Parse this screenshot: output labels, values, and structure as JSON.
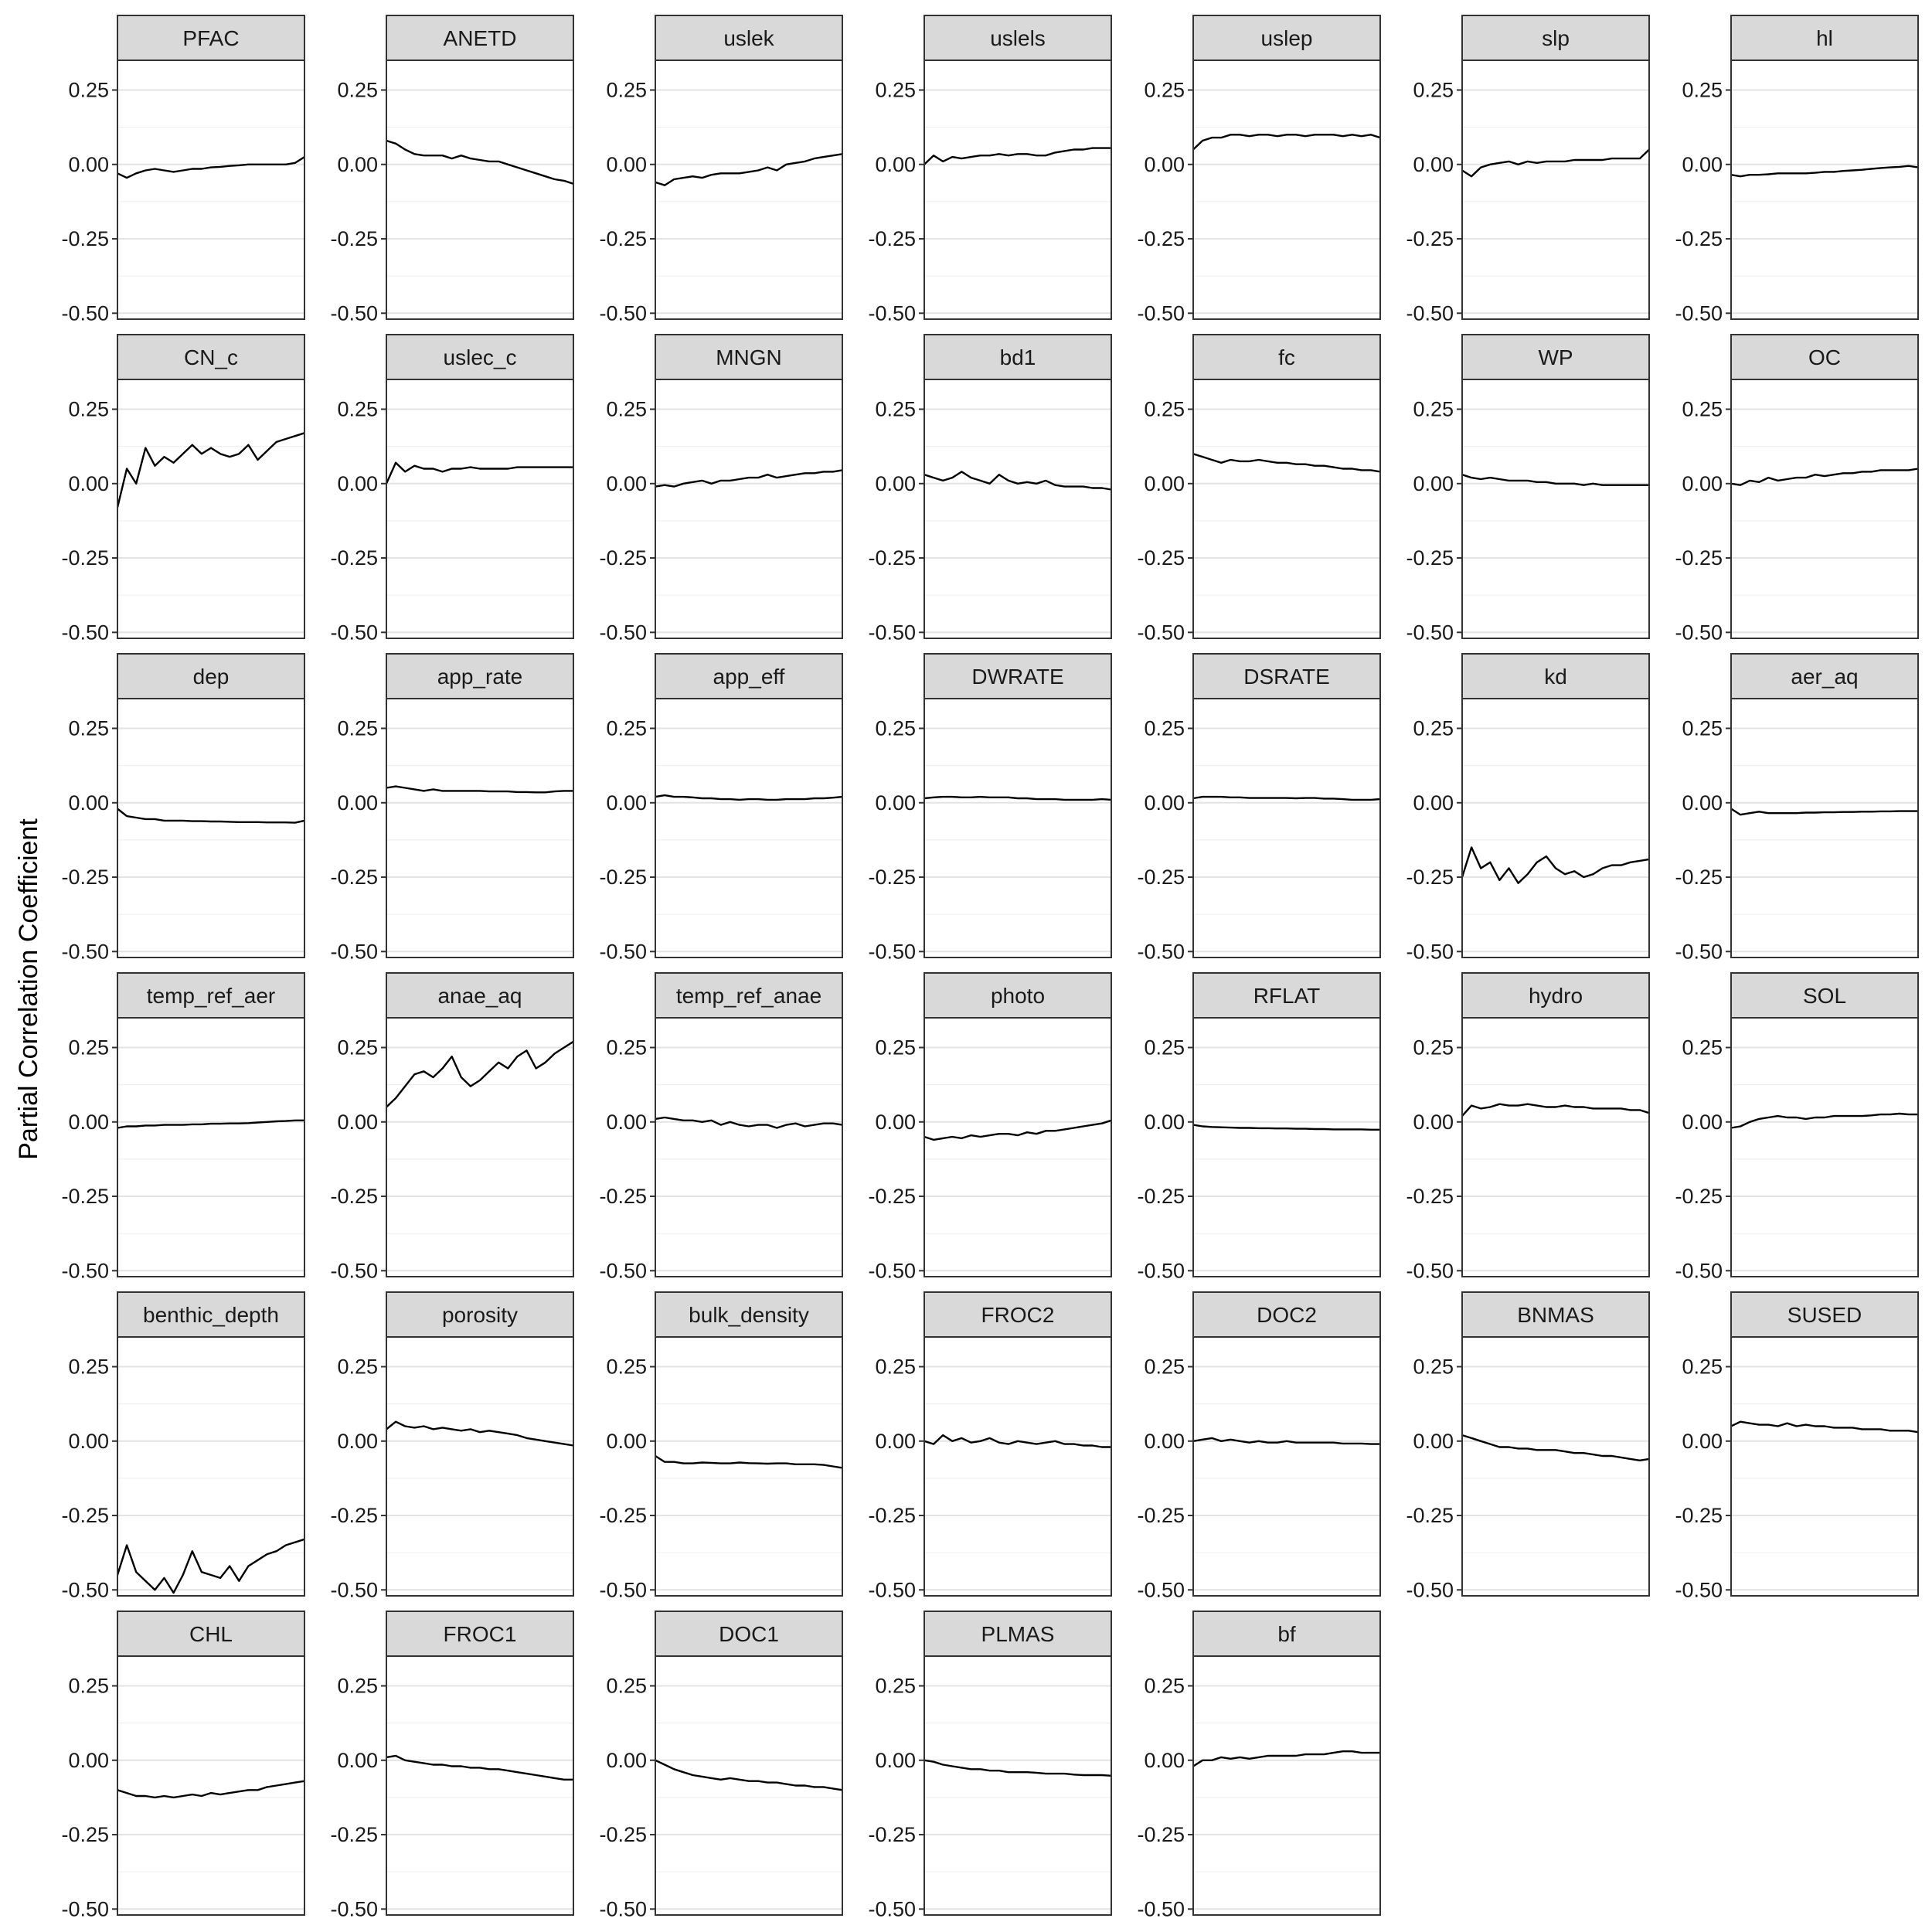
{
  "chart_data": {
    "type": "line",
    "layout": "facet-grid",
    "ylabel": "Partial Correlation Coefficient",
    "xlabel": "",
    "ylim": [
      -0.52,
      0.35
    ],
    "yticks": [
      0.25,
      0.0,
      -0.25,
      -0.5
    ],
    "ytick_labels": [
      "0.25",
      "0.00",
      "-0.25",
      "-0.50"
    ],
    "x": [
      0,
      0.05,
      0.1,
      0.15,
      0.2,
      0.25,
      0.3,
      0.35,
      0.4,
      0.45,
      0.5,
      0.55,
      0.6,
      0.65,
      0.7,
      0.75,
      0.8,
      0.85,
      0.9,
      0.95,
      1.0
    ],
    "grid": true,
    "series": [
      {
        "name": "PFAC",
        "values": [
          -0.03,
          -0.045,
          -0.03,
          -0.02,
          -0.015,
          -0.02,
          -0.025,
          -0.02,
          -0.015,
          -0.015,
          -0.01,
          -0.008,
          -0.005,
          -0.003,
          0.0,
          0.0,
          0.0,
          0.0,
          0.0,
          0.005,
          0.025
        ]
      },
      {
        "name": "ANETD",
        "values": [
          0.08,
          0.07,
          0.05,
          0.035,
          0.03,
          0.03,
          0.03,
          0.02,
          0.03,
          0.02,
          0.015,
          0.01,
          0.01,
          0.0,
          -0.01,
          -0.02,
          -0.03,
          -0.04,
          -0.05,
          -0.055,
          -0.065
        ]
      },
      {
        "name": "uslek",
        "values": [
          -0.06,
          -0.07,
          -0.05,
          -0.045,
          -0.04,
          -0.045,
          -0.035,
          -0.03,
          -0.03,
          -0.03,
          -0.025,
          -0.02,
          -0.01,
          -0.02,
          0.0,
          0.005,
          0.01,
          0.02,
          0.025,
          0.03,
          0.035
        ]
      },
      {
        "name": "uslels",
        "values": [
          0.0,
          0.03,
          0.01,
          0.025,
          0.02,
          0.025,
          0.03,
          0.03,
          0.035,
          0.03,
          0.035,
          0.035,
          0.03,
          0.03,
          0.04,
          0.045,
          0.05,
          0.05,
          0.055,
          0.055,
          0.055
        ]
      },
      {
        "name": "uslep",
        "values": [
          0.05,
          0.08,
          0.09,
          0.09,
          0.1,
          0.1,
          0.095,
          0.1,
          0.1,
          0.095,
          0.1,
          0.1,
          0.095,
          0.1,
          0.1,
          0.1,
          0.095,
          0.1,
          0.095,
          0.1,
          0.09
        ]
      },
      {
        "name": "slp",
        "values": [
          -0.02,
          -0.04,
          -0.01,
          0.0,
          0.005,
          0.01,
          0.0,
          0.01,
          0.005,
          0.01,
          0.01,
          0.01,
          0.015,
          0.015,
          0.015,
          0.015,
          0.02,
          0.02,
          0.02,
          0.02,
          0.05
        ]
      },
      {
        "name": "hl",
        "values": [
          -0.035,
          -0.04,
          -0.035,
          -0.035,
          -0.033,
          -0.03,
          -0.03,
          -0.03,
          -0.03,
          -0.028,
          -0.025,
          -0.025,
          -0.022,
          -0.02,
          -0.018,
          -0.015,
          -0.012,
          -0.01,
          -0.008,
          -0.005,
          -0.01
        ]
      },
      {
        "name": "CN_c",
        "values": [
          -0.08,
          0.05,
          0.0,
          0.12,
          0.06,
          0.09,
          0.07,
          0.1,
          0.13,
          0.1,
          0.12,
          0.1,
          0.09,
          0.1,
          0.13,
          0.08,
          0.11,
          0.14,
          0.15,
          0.16,
          0.17
        ]
      },
      {
        "name": "uslec_c",
        "values": [
          0.0,
          0.07,
          0.04,
          0.06,
          0.05,
          0.05,
          0.04,
          0.05,
          0.05,
          0.055,
          0.05,
          0.05,
          0.05,
          0.05,
          0.055,
          0.055,
          0.055,
          0.055,
          0.055,
          0.055,
          0.055
        ]
      },
      {
        "name": "MNGN",
        "values": [
          -0.01,
          -0.005,
          -0.01,
          0.0,
          0.005,
          0.01,
          0.0,
          0.01,
          0.01,
          0.015,
          0.02,
          0.02,
          0.03,
          0.02,
          0.025,
          0.03,
          0.035,
          0.035,
          0.04,
          0.04,
          0.045
        ]
      },
      {
        "name": "bd1",
        "values": [
          0.03,
          0.02,
          0.01,
          0.02,
          0.04,
          0.02,
          0.01,
          0.0,
          0.03,
          0.01,
          0.0,
          0.005,
          0.0,
          0.01,
          -0.005,
          -0.01,
          -0.01,
          -0.01,
          -0.015,
          -0.015,
          -0.02
        ]
      },
      {
        "name": "fc",
        "values": [
          0.1,
          0.09,
          0.08,
          0.07,
          0.08,
          0.075,
          0.075,
          0.08,
          0.075,
          0.07,
          0.07,
          0.065,
          0.065,
          0.06,
          0.06,
          0.055,
          0.05,
          0.05,
          0.045,
          0.045,
          0.04
        ]
      },
      {
        "name": "WP",
        "values": [
          0.03,
          0.02,
          0.015,
          0.02,
          0.015,
          0.01,
          0.01,
          0.01,
          0.005,
          0.005,
          0.0,
          0.0,
          0.0,
          -0.005,
          0.0,
          -0.005,
          -0.005,
          -0.005,
          -0.005,
          -0.005,
          -0.005
        ]
      },
      {
        "name": "OC",
        "values": [
          0.0,
          -0.005,
          0.01,
          0.005,
          0.02,
          0.01,
          0.015,
          0.02,
          0.02,
          0.03,
          0.025,
          0.03,
          0.035,
          0.035,
          0.04,
          0.04,
          0.045,
          0.045,
          0.045,
          0.045,
          0.05
        ]
      },
      {
        "name": "dep",
        "values": [
          -0.02,
          -0.045,
          -0.05,
          -0.055,
          -0.055,
          -0.06,
          -0.06,
          -0.06,
          -0.062,
          -0.062,
          -0.063,
          -0.063,
          -0.064,
          -0.065,
          -0.065,
          -0.065,
          -0.066,
          -0.066,
          -0.066,
          -0.067,
          -0.06
        ]
      },
      {
        "name": "app_rate",
        "values": [
          0.05,
          0.055,
          0.05,
          0.045,
          0.04,
          0.045,
          0.04,
          0.04,
          0.04,
          0.04,
          0.04,
          0.038,
          0.038,
          0.038,
          0.036,
          0.036,
          0.035,
          0.035,
          0.038,
          0.04,
          0.04
        ]
      },
      {
        "name": "app_eff",
        "values": [
          0.02,
          0.025,
          0.02,
          0.02,
          0.018,
          0.015,
          0.015,
          0.012,
          0.012,
          0.01,
          0.012,
          0.012,
          0.01,
          0.01,
          0.012,
          0.012,
          0.012,
          0.015,
          0.015,
          0.017,
          0.02
        ]
      },
      {
        "name": "DWRATE",
        "values": [
          0.015,
          0.018,
          0.02,
          0.02,
          0.018,
          0.018,
          0.02,
          0.018,
          0.018,
          0.018,
          0.015,
          0.015,
          0.012,
          0.012,
          0.012,
          0.01,
          0.01,
          0.01,
          0.01,
          0.012,
          0.01
        ]
      },
      {
        "name": "DSRATE",
        "values": [
          0.015,
          0.02,
          0.02,
          0.02,
          0.018,
          0.018,
          0.016,
          0.016,
          0.016,
          0.016,
          0.016,
          0.015,
          0.016,
          0.016,
          0.014,
          0.014,
          0.012,
          0.01,
          0.01,
          0.01,
          0.012
        ]
      },
      {
        "name": "kd",
        "values": [
          -0.25,
          -0.15,
          -0.22,
          -0.2,
          -0.26,
          -0.22,
          -0.27,
          -0.24,
          -0.2,
          -0.18,
          -0.22,
          -0.24,
          -0.23,
          -0.25,
          -0.24,
          -0.22,
          -0.21,
          -0.21,
          -0.2,
          -0.195,
          -0.19
        ]
      },
      {
        "name": "aer_aq",
        "values": [
          -0.02,
          -0.04,
          -0.035,
          -0.03,
          -0.035,
          -0.035,
          -0.035,
          -0.035,
          -0.033,
          -0.033,
          -0.032,
          -0.032,
          -0.031,
          -0.031,
          -0.03,
          -0.03,
          -0.029,
          -0.029,
          -0.028,
          -0.028,
          -0.028
        ]
      },
      {
        "name": "temp_ref_aer",
        "values": [
          -0.02,
          -0.015,
          -0.015,
          -0.012,
          -0.012,
          -0.01,
          -0.01,
          -0.01,
          -0.008,
          -0.008,
          -0.006,
          -0.006,
          -0.005,
          -0.005,
          -0.004,
          -0.002,
          0.0,
          0.002,
          0.003,
          0.005,
          0.005
        ]
      },
      {
        "name": "anae_aq",
        "values": [
          0.05,
          0.08,
          0.12,
          0.16,
          0.17,
          0.15,
          0.18,
          0.22,
          0.15,
          0.12,
          0.14,
          0.17,
          0.2,
          0.18,
          0.22,
          0.24,
          0.18,
          0.2,
          0.23,
          0.25,
          0.27
        ]
      },
      {
        "name": "temp_ref_anae",
        "values": [
          0.01,
          0.015,
          0.01,
          0.005,
          0.005,
          0.0,
          0.005,
          -0.01,
          0.0,
          -0.01,
          -0.015,
          -0.01,
          -0.01,
          -0.02,
          -0.01,
          -0.005,
          -0.015,
          -0.01,
          -0.005,
          -0.005,
          -0.01
        ]
      },
      {
        "name": "photo",
        "values": [
          -0.05,
          -0.06,
          -0.055,
          -0.05,
          -0.055,
          -0.045,
          -0.05,
          -0.045,
          -0.04,
          -0.04,
          -0.045,
          -0.035,
          -0.04,
          -0.03,
          -0.03,
          -0.025,
          -0.02,
          -0.015,
          -0.01,
          -0.005,
          0.005
        ]
      },
      {
        "name": "RFLAT",
        "values": [
          -0.01,
          -0.015,
          -0.017,
          -0.018,
          -0.019,
          -0.02,
          -0.02,
          -0.021,
          -0.021,
          -0.022,
          -0.022,
          -0.023,
          -0.023,
          -0.024,
          -0.024,
          -0.025,
          -0.025,
          -0.025,
          -0.025,
          -0.026,
          -0.026
        ]
      },
      {
        "name": "hydro",
        "values": [
          0.02,
          0.055,
          0.045,
          0.05,
          0.06,
          0.055,
          0.055,
          0.06,
          0.055,
          0.05,
          0.05,
          0.055,
          0.05,
          0.05,
          0.045,
          0.045,
          0.045,
          0.045,
          0.04,
          0.04,
          0.03
        ]
      },
      {
        "name": "SOL",
        "values": [
          -0.02,
          -0.015,
          0.0,
          0.01,
          0.015,
          0.02,
          0.015,
          0.015,
          0.01,
          0.015,
          0.015,
          0.02,
          0.02,
          0.02,
          0.02,
          0.022,
          0.025,
          0.025,
          0.028,
          0.025,
          0.025
        ]
      },
      {
        "name": "benthic_depth",
        "values": [
          -0.45,
          -0.35,
          -0.44,
          -0.47,
          -0.5,
          -0.46,
          -0.51,
          -0.45,
          -0.37,
          -0.44,
          -0.45,
          -0.46,
          -0.42,
          -0.47,
          -0.42,
          -0.4,
          -0.38,
          -0.37,
          -0.35,
          -0.34,
          -0.33
        ]
      },
      {
        "name": "porosity",
        "values": [
          0.04,
          0.065,
          0.05,
          0.045,
          0.05,
          0.04,
          0.045,
          0.04,
          0.035,
          0.04,
          0.03,
          0.035,
          0.03,
          0.025,
          0.02,
          0.01,
          0.005,
          0.0,
          -0.005,
          -0.01,
          -0.015
        ]
      },
      {
        "name": "bulk_density",
        "values": [
          -0.05,
          -0.07,
          -0.07,
          -0.075,
          -0.075,
          -0.072,
          -0.073,
          -0.075,
          -0.075,
          -0.072,
          -0.074,
          -0.075,
          -0.076,
          -0.075,
          -0.075,
          -0.078,
          -0.078,
          -0.078,
          -0.08,
          -0.085,
          -0.09
        ]
      },
      {
        "name": "FROC2",
        "values": [
          0.0,
          -0.01,
          0.02,
          0.0,
          0.01,
          -0.005,
          0.0,
          0.01,
          -0.005,
          -0.01,
          0.0,
          -0.005,
          -0.01,
          -0.005,
          0.0,
          -0.01,
          -0.01,
          -0.015,
          -0.015,
          -0.02,
          -0.02
        ]
      },
      {
        "name": "DOC2",
        "values": [
          0.0,
          0.005,
          0.01,
          0.0,
          0.005,
          0.0,
          -0.005,
          0.0,
          -0.005,
          -0.005,
          0.0,
          -0.005,
          -0.005,
          -0.005,
          -0.005,
          -0.005,
          -0.008,
          -0.008,
          -0.008,
          -0.01,
          -0.01
        ]
      },
      {
        "name": "BNMAS",
        "values": [
          0.02,
          0.01,
          0.0,
          -0.01,
          -0.02,
          -0.02,
          -0.025,
          -0.025,
          -0.03,
          -0.03,
          -0.03,
          -0.035,
          -0.04,
          -0.04,
          -0.045,
          -0.05,
          -0.05,
          -0.055,
          -0.06,
          -0.065,
          -0.06
        ]
      },
      {
        "name": "SUSED",
        "values": [
          0.05,
          0.065,
          0.06,
          0.055,
          0.055,
          0.05,
          0.06,
          0.05,
          0.055,
          0.05,
          0.05,
          0.045,
          0.045,
          0.045,
          0.04,
          0.04,
          0.04,
          0.035,
          0.035,
          0.035,
          0.03
        ]
      },
      {
        "name": "CHL",
        "values": [
          -0.1,
          -0.11,
          -0.12,
          -0.12,
          -0.125,
          -0.12,
          -0.125,
          -0.12,
          -0.115,
          -0.12,
          -0.11,
          -0.115,
          -0.11,
          -0.105,
          -0.1,
          -0.1,
          -0.09,
          -0.085,
          -0.08,
          -0.075,
          -0.07
        ]
      },
      {
        "name": "FROC1",
        "values": [
          0.01,
          0.015,
          0.0,
          -0.005,
          -0.01,
          -0.015,
          -0.015,
          -0.02,
          -0.02,
          -0.025,
          -0.025,
          -0.03,
          -0.03,
          -0.035,
          -0.04,
          -0.045,
          -0.05,
          -0.055,
          -0.06,
          -0.065,
          -0.065
        ]
      },
      {
        "name": "DOC1",
        "values": [
          0.0,
          -0.015,
          -0.03,
          -0.04,
          -0.05,
          -0.055,
          -0.06,
          -0.065,
          -0.06,
          -0.065,
          -0.07,
          -0.07,
          -0.075,
          -0.075,
          -0.08,
          -0.085,
          -0.085,
          -0.09,
          -0.09,
          -0.095,
          -0.1
        ]
      },
      {
        "name": "PLMAS",
        "values": [
          0.0,
          -0.005,
          -0.015,
          -0.02,
          -0.025,
          -0.03,
          -0.03,
          -0.035,
          -0.035,
          -0.04,
          -0.04,
          -0.04,
          -0.042,
          -0.045,
          -0.045,
          -0.045,
          -0.048,
          -0.05,
          -0.05,
          -0.05,
          -0.052
        ]
      },
      {
        "name": "bf",
        "values": [
          -0.02,
          0.0,
          0.0,
          0.01,
          0.005,
          0.01,
          0.005,
          0.01,
          0.015,
          0.015,
          0.015,
          0.015,
          0.02,
          0.02,
          0.02,
          0.025,
          0.03,
          0.03,
          0.025,
          0.025,
          0.025
        ]
      }
    ]
  }
}
